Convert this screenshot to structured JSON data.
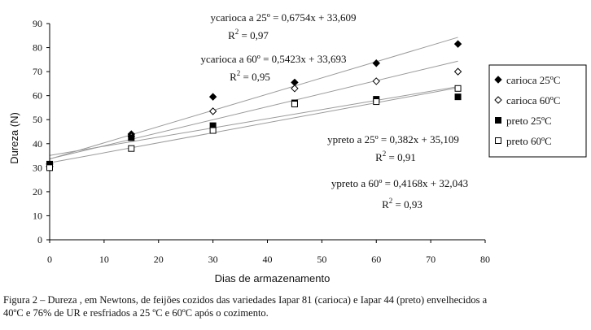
{
  "chart_data": {
    "type": "scatter",
    "xlabel": "Dias de armazenamento",
    "ylabel": "Dureza (N)",
    "xlim": [
      0,
      80
    ],
    "ylim": [
      0,
      90
    ],
    "x_ticks": [
      0,
      10,
      20,
      30,
      40,
      50,
      60,
      70,
      80
    ],
    "y_ticks": [
      0,
      10,
      20,
      30,
      40,
      50,
      60,
      70,
      80,
      90
    ],
    "grid": false,
    "legend_position": "right",
    "series": [
      {
        "name": "carioca 25ºC",
        "marker": "filled-diamond",
        "x": [
          0,
          15,
          30,
          45,
          60,
          75
        ],
        "y": [
          31.5,
          44,
          59.5,
          65.5,
          73.5,
          81.5
        ]
      },
      {
        "name": "carioca 60ºC",
        "marker": "open-diamond",
        "x": [
          0,
          15,
          30,
          45,
          60,
          75
        ],
        "y": [
          30.5,
          43,
          53.5,
          63,
          66,
          70
        ]
      },
      {
        "name": "preto 25ºC",
        "marker": "filled-square",
        "x": [
          0,
          15,
          30,
          45,
          60,
          75
        ],
        "y": [
          31.5,
          42.5,
          47.5,
          57,
          58.5,
          59.5
        ]
      },
      {
        "name": "preto 60ºC",
        "marker": "open-square",
        "x": [
          0,
          15,
          30,
          45,
          60,
          75
        ],
        "y": [
          30,
          38,
          45.5,
          56.5,
          57.5,
          63
        ]
      }
    ],
    "trendlines": [
      {
        "slope": 0.6754,
        "intercept": 33.609,
        "x_range": [
          0,
          75
        ]
      },
      {
        "slope": 0.5423,
        "intercept": 33.693,
        "x_range": [
          0,
          75
        ]
      },
      {
        "slope": 0.382,
        "intercept": 35.109,
        "x_range": [
          0,
          75
        ]
      },
      {
        "slope": 0.4168,
        "intercept": 32.043,
        "x_range": [
          0,
          75
        ]
      }
    ],
    "annotations": [
      {
        "equation": "ycarioca a 25º = 0,6754x + 33,609",
        "r2_label": "R",
        "r2_exp": "2",
        "r2_value": " = 0,97"
      },
      {
        "equation": "ycarioca a 60º = 0,5423x + 33,693",
        "r2_label": "R",
        "r2_exp": "2",
        "r2_value": " = 0,95"
      },
      {
        "equation": "ypreto a 25º = 0,382x + 35,109",
        "r2_label": "R",
        "r2_exp": "2",
        "r2_value": " = 0,91"
      },
      {
        "equation": "ypreto a 60º = 0,4168x + 32,043",
        "r2_label": "R",
        "r2_exp": "2",
        "r2_value": " = 0,93"
      }
    ]
  },
  "caption": {
    "line1": "Figura 2 – Dureza , em Newtons, de feijões cozidos das variedades Iapar 81 (carioca) e Iapar 44 (preto) envelhecidos a",
    "line2": "40ºC e 76% de UR e resfriados a 25 ºC e 60ºC após o cozimento."
  }
}
